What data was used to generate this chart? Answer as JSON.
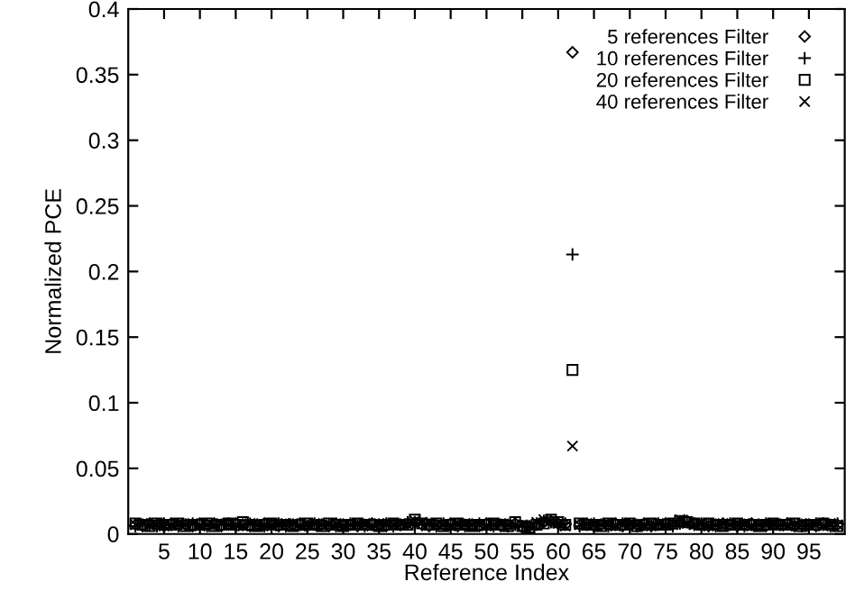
{
  "chart_data": {
    "type": "scatter",
    "xlabel": "Reference Index",
    "ylabel": "Normalized PCE",
    "x": [
      1,
      2,
      3,
      4,
      5,
      6,
      7,
      8,
      9,
      10,
      11,
      12,
      13,
      14,
      15,
      16,
      17,
      18,
      19,
      20,
      21,
      22,
      23,
      24,
      25,
      26,
      27,
      28,
      29,
      30,
      31,
      32,
      33,
      34,
      35,
      36,
      37,
      38,
      39,
      40,
      41,
      42,
      43,
      44,
      45,
      46,
      47,
      48,
      49,
      50,
      51,
      52,
      53,
      54,
      55,
      56,
      57,
      58,
      59,
      60,
      61,
      62,
      63,
      64,
      65,
      66,
      67,
      68,
      69,
      70,
      71,
      72,
      73,
      74,
      75,
      76,
      77,
      78,
      79,
      80,
      81,
      82,
      83,
      84,
      85,
      86,
      87,
      88,
      89,
      90,
      91,
      92,
      93,
      94,
      95,
      96,
      97,
      98,
      99
    ],
    "series": [
      {
        "name": "5 references Filter",
        "marker": "diamond",
        "color": "#000000",
        "values": [
          0.007,
          0.006,
          0.008,
          0.007,
          0.006,
          0.008,
          0.007,
          0.007,
          0.006,
          0.008,
          0.007,
          0.008,
          0.006,
          0.007,
          0.008,
          0.007,
          0.006,
          0.007,
          0.008,
          0.007,
          0.006,
          0.007,
          0.007,
          0.008,
          0.006,
          0.007,
          0.007,
          0.006,
          0.008,
          0.007,
          0.007,
          0.006,
          0.007,
          0.008,
          0.007,
          0.006,
          0.007,
          0.007,
          0.008,
          0.009,
          0.007,
          0.006,
          0.007,
          0.007,
          0.008,
          0.006,
          0.007,
          0.007,
          0.006,
          0.008,
          0.007,
          0.006,
          0.007,
          0.008,
          0.005,
          0.006,
          0.007,
          0.009,
          0.01,
          0.008,
          0.007,
          0.367,
          0.007,
          0.008,
          0.006,
          0.007,
          0.007,
          0.008,
          0.006,
          0.007,
          0.007,
          0.008,
          0.006,
          0.007,
          0.008,
          0.007,
          0.009,
          0.01,
          0.008,
          0.007,
          0.006,
          0.007,
          0.008,
          0.007,
          0.006,
          0.007,
          0.008,
          0.007,
          0.006,
          0.007,
          0.007,
          0.008,
          0.006,
          0.007,
          0.007,
          0.006,
          0.008,
          0.007,
          0.007
        ]
      },
      {
        "name": "10 references Filter",
        "marker": "plus",
        "color": "#000000",
        "values": [
          0.006,
          0.007,
          0.007,
          0.006,
          0.008,
          0.007,
          0.006,
          0.007,
          0.008,
          0.007,
          0.006,
          0.007,
          0.007,
          0.008,
          0.006,
          0.007,
          0.008,
          0.007,
          0.006,
          0.007,
          0.008,
          0.006,
          0.007,
          0.007,
          0.006,
          0.008,
          0.007,
          0.007,
          0.006,
          0.007,
          0.008,
          0.007,
          0.006,
          0.007,
          0.007,
          0.008,
          0.006,
          0.007,
          0.009,
          0.008,
          0.007,
          0.007,
          0.006,
          0.008,
          0.007,
          0.007,
          0.006,
          0.007,
          0.008,
          0.007,
          0.006,
          0.007,
          0.006,
          0.007,
          0.006,
          0.005,
          0.008,
          0.01,
          0.009,
          0.007,
          0.008,
          0.213,
          0.006,
          0.007,
          0.008,
          0.007,
          0.006,
          0.007,
          0.008,
          0.007,
          0.006,
          0.007,
          0.007,
          0.008,
          0.007,
          0.006,
          0.008,
          0.009,
          0.007,
          0.008,
          0.007,
          0.006,
          0.007,
          0.008,
          0.007,
          0.006,
          0.007,
          0.007,
          0.008,
          0.006,
          0.007,
          0.008,
          0.007,
          0.006,
          0.007,
          0.008,
          0.007,
          0.006,
          0.008
        ]
      },
      {
        "name": "20 references Filter",
        "marker": "square",
        "color": "#000000",
        "values": [
          0.008,
          0.007,
          0.006,
          0.008,
          0.007,
          0.007,
          0.008,
          0.006,
          0.007,
          0.007,
          0.008,
          0.006,
          0.007,
          0.008,
          0.007,
          0.009,
          0.007,
          0.006,
          0.007,
          0.008,
          0.007,
          0.007,
          0.006,
          0.007,
          0.008,
          0.007,
          0.006,
          0.008,
          0.007,
          0.006,
          0.007,
          0.008,
          0.007,
          0.007,
          0.006,
          0.007,
          0.008,
          0.007,
          0.007,
          0.011,
          0.008,
          0.007,
          0.008,
          0.006,
          0.007,
          0.008,
          0.007,
          0.006,
          0.007,
          0.007,
          0.008,
          0.007,
          0.006,
          0.009,
          0.006,
          0.005,
          0.007,
          0.008,
          0.011,
          0.009,
          0.007,
          0.125,
          0.008,
          0.007,
          0.007,
          0.006,
          0.008,
          0.007,
          0.007,
          0.008,
          0.006,
          0.007,
          0.008,
          0.007,
          0.007,
          0.008,
          0.01,
          0.009,
          0.008,
          0.007,
          0.008,
          0.007,
          0.006,
          0.007,
          0.008,
          0.007,
          0.007,
          0.006,
          0.007,
          0.008,
          0.007,
          0.007,
          0.008,
          0.006,
          0.007,
          0.007,
          0.008,
          0.007,
          0.006
        ]
      },
      {
        "name": "40 references Filter",
        "marker": "cross",
        "color": "#000000",
        "values": [
          0.007,
          0.008,
          0.007,
          0.007,
          0.006,
          0.007,
          0.008,
          0.007,
          0.008,
          0.006,
          0.007,
          0.007,
          0.008,
          0.007,
          0.007,
          0.006,
          0.008,
          0.007,
          0.007,
          0.006,
          0.007,
          0.008,
          0.008,
          0.006,
          0.007,
          0.008,
          0.007,
          0.007,
          0.008,
          0.006,
          0.007,
          0.007,
          0.008,
          0.006,
          0.008,
          0.007,
          0.007,
          0.008,
          0.007,
          0.01,
          0.009,
          0.008,
          0.007,
          0.007,
          0.006,
          0.007,
          0.008,
          0.007,
          0.007,
          0.006,
          0.007,
          0.008,
          0.007,
          0.007,
          0.007,
          0.006,
          0.009,
          0.011,
          0.01,
          0.008,
          0.006,
          0.067,
          0.007,
          0.008,
          0.007,
          0.007,
          0.008,
          0.006,
          0.007,
          0.008,
          0.007,
          0.007,
          0.006,
          0.008,
          0.007,
          0.007,
          0.011,
          0.008,
          0.007,
          0.008,
          0.006,
          0.007,
          0.008,
          0.007,
          0.007,
          0.008,
          0.006,
          0.007,
          0.007,
          0.008,
          0.007,
          0.006,
          0.007,
          0.008,
          0.007,
          0.007,
          0.006,
          0.008,
          0.007
        ]
      }
    ],
    "xlim": [
      0,
      100
    ],
    "xticks": [
      5,
      10,
      15,
      20,
      25,
      30,
      35,
      40,
      45,
      50,
      55,
      60,
      65,
      70,
      75,
      80,
      85,
      90,
      95
    ],
    "ylim": [
      0,
      0.4
    ],
    "yticks": [
      0,
      0.05,
      0.1,
      0.15,
      0.2,
      0.25,
      0.3,
      0.35,
      0.4
    ],
    "grid": false,
    "legend": "top right"
  }
}
